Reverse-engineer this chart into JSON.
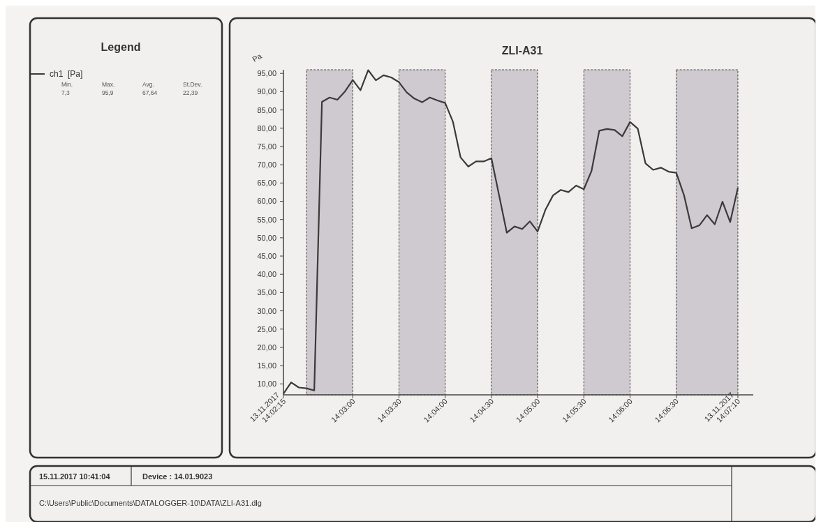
{
  "chart_data": {
    "type": "line",
    "title": "ZLI-A31",
    "ylabel": "Pa",
    "legend_title": "Legend",
    "legend": "left",
    "annotations": [
      "Min.",
      "Max.",
      "Avg.",
      "St.Dev.",
      "7,3",
      "95,9",
      "67,64",
      "22,39",
      "15.11.2017 10:41:04",
      "Device : 14.01.9023",
      "C:\\Users\\Public\\Documents\\DATALOGGER-10\\DATA\\ZLI-A31.dlg"
    ],
    "xlim": [
      14.0375,
      14.122222
    ],
    "ylim": [
      7,
      96
    ],
    "xticks": [
      {
        "value": 14.0375,
        "label": "13.11.2017\n14:02:15"
      },
      {
        "value": 14.05,
        "label": "14:03:00"
      },
      {
        "value": 14.058333,
        "label": "14:03:30"
      },
      {
        "value": 14.066667,
        "label": "14:04:00"
      },
      {
        "value": 14.075,
        "label": "14:04:30"
      },
      {
        "value": 14.083333,
        "label": "14:05:00"
      },
      {
        "value": 14.091667,
        "label": "14:05:30"
      },
      {
        "value": 14.1,
        "label": "14:06:00"
      },
      {
        "value": 14.108333,
        "label": "14:06:30"
      },
      {
        "value": 14.119444,
        "label": "13.11.2017\n14:07:10"
      }
    ],
    "yticks": [
      {
        "value": 10,
        "label": "10,00"
      },
      {
        "value": 15,
        "label": "15,00"
      },
      {
        "value": 20,
        "label": "20,00"
      },
      {
        "value": 25,
        "label": "25,00"
      },
      {
        "value": 30,
        "label": "30,00"
      },
      {
        "value": 35,
        "label": "35,00"
      },
      {
        "value": 40,
        "label": "40,00"
      },
      {
        "value": 45,
        "label": "45,00"
      },
      {
        "value": 50,
        "label": "50,00"
      },
      {
        "value": 55,
        "label": "55,00"
      },
      {
        "value": 60,
        "label": "60,00"
      },
      {
        "value": 65,
        "label": "65,00"
      },
      {
        "value": 70,
        "label": "70,00"
      },
      {
        "value": 75,
        "label": "75,00"
      },
      {
        "value": 80,
        "label": "80,00"
      },
      {
        "value": 85,
        "label": "85,00"
      },
      {
        "value": 90,
        "label": "90,00"
      },
      {
        "value": 95,
        "label": "95,00"
      }
    ],
    "bands": [
      {
        "axis": "x",
        "from": 14.041667,
        "to": 14.05,
        "color": "#cfcacf"
      },
      {
        "axis": "x",
        "from": 14.058333,
        "to": 14.066667,
        "color": "#cfcacf"
      },
      {
        "axis": "x",
        "from": 14.075,
        "to": 14.083333,
        "color": "#cfcacf"
      },
      {
        "axis": "x",
        "from": 14.091667,
        "to": 14.1,
        "color": "#cfcacf"
      },
      {
        "axis": "x",
        "from": 14.108333,
        "to": 14.119444,
        "color": "#cfcacf"
      }
    ],
    "series": [
      {
        "name": "ch1  [Pa]",
        "color": "#3a3a3a",
        "x": [
          14.0375,
          14.038889,
          14.040278,
          14.041667,
          14.043056,
          14.044444,
          14.045833,
          14.047222,
          14.048611,
          14.05,
          14.051389,
          14.052778,
          14.054167,
          14.055556,
          14.056944,
          14.058333,
          14.059722,
          14.061111,
          14.0625,
          14.063889,
          14.065278,
          14.066667,
          14.068056,
          14.069444,
          14.070833,
          14.072222,
          14.073611,
          14.075,
          14.077778,
          14.079167,
          14.080556,
          14.081944,
          14.083333,
          14.084722,
          14.086111,
          14.0875,
          14.088889,
          14.090278,
          14.091667,
          14.093056,
          14.094444,
          14.095833,
          14.097222,
          14.098611,
          14.1,
          14.101389,
          14.102778,
          14.104167,
          14.105556,
          14.106944,
          14.108333,
          14.109722,
          14.111111,
          14.1125,
          14.113889,
          14.115278,
          14.116667,
          14.118056,
          14.119444
        ],
        "values": [
          7.3,
          10.4,
          9.0,
          8.8,
          8.2,
          87.2,
          88.4,
          87.8,
          90.1,
          93.2,
          90.4,
          95.9,
          93.1,
          94.5,
          93.9,
          92.6,
          89.8,
          88.1,
          87.1,
          88.4,
          87.6,
          86.9,
          81.8,
          72.0,
          69.5,
          70.9,
          70.9,
          71.8,
          51.4,
          53.1,
          52.4,
          54.5,
          51.7,
          57.6,
          61.6,
          63.1,
          62.5,
          64.3,
          63.3,
          68.3,
          79.3,
          79.8,
          79.5,
          77.8,
          81.7,
          79.9,
          70.4,
          68.6,
          69.2,
          68.1,
          67.8,
          61.7,
          52.6,
          53.4,
          56.2,
          53.7,
          59.9,
          54.3,
          63.7
        ]
      }
    ]
  }
}
